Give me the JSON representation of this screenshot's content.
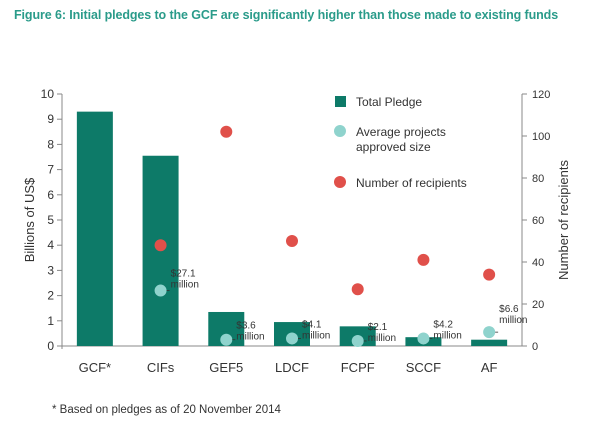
{
  "title": "Figure 6: Initial pledges to the GCF are significantly higher than those made to existing funds",
  "footnote": "* Based on pledges as of 20 November 2014",
  "colors": {
    "title": "#2a9b8a",
    "bar": "#0d7a68",
    "avg": "#8fd3cd",
    "recipients": "#e0504a",
    "axis": "#888888",
    "text": "#333333"
  },
  "chart_data": {
    "type": "bar",
    "title": "Figure 6: Initial pledges to the GCF are significantly higher than those made to existing funds",
    "categories": [
      "GCF*",
      "CIFs",
      "GEF5",
      "LDCF",
      "FCPF",
      "SCCF",
      "AF"
    ],
    "ylabel": "Billions of US$",
    "y2label": "Number of recipients",
    "ylim": [
      0,
      10
    ],
    "y2lim": [
      0,
      120
    ],
    "yticks": [
      0,
      1,
      2,
      3,
      4,
      5,
      6,
      7,
      8,
      9,
      10
    ],
    "y2ticks": [
      0,
      20,
      40,
      60,
      80,
      100,
      120
    ],
    "grid": false,
    "legend_position": "top-right",
    "series": [
      {
        "name": "Total Pledge",
        "axis": "left",
        "kind": "bar",
        "values": [
          9.3,
          7.55,
          1.35,
          0.95,
          0.78,
          0.35,
          0.25
        ]
      },
      {
        "name": "Average projects approved size",
        "axis": "left",
        "kind": "marker",
        "values": [
          null,
          2.2,
          0.25,
          0.3,
          0.2,
          0.3,
          0.55
        ]
      },
      {
        "name": "Number of recipients",
        "axis": "right",
        "kind": "marker",
        "values": [
          null,
          48,
          102,
          50,
          27,
          41,
          34
        ]
      }
    ],
    "annotations": [
      {
        "category": "CIFs",
        "lines": [
          "$27.1",
          "million"
        ]
      },
      {
        "category": "GEF5",
        "lines": [
          "$3.6",
          "million"
        ]
      },
      {
        "category": "LDCF",
        "lines": [
          "$4.1",
          "million"
        ]
      },
      {
        "category": "FCPF",
        "lines": [
          "$2.1",
          "million"
        ]
      },
      {
        "category": "SCCF",
        "lines": [
          "$4.2",
          "million"
        ]
      },
      {
        "category": "AF",
        "lines": [
          "$6.6",
          "million"
        ]
      }
    ],
    "legend": {
      "total": [
        "Total Pledge"
      ],
      "avg": [
        "Average projects",
        "approved size"
      ],
      "recipients": [
        "Number of recipients"
      ]
    }
  }
}
